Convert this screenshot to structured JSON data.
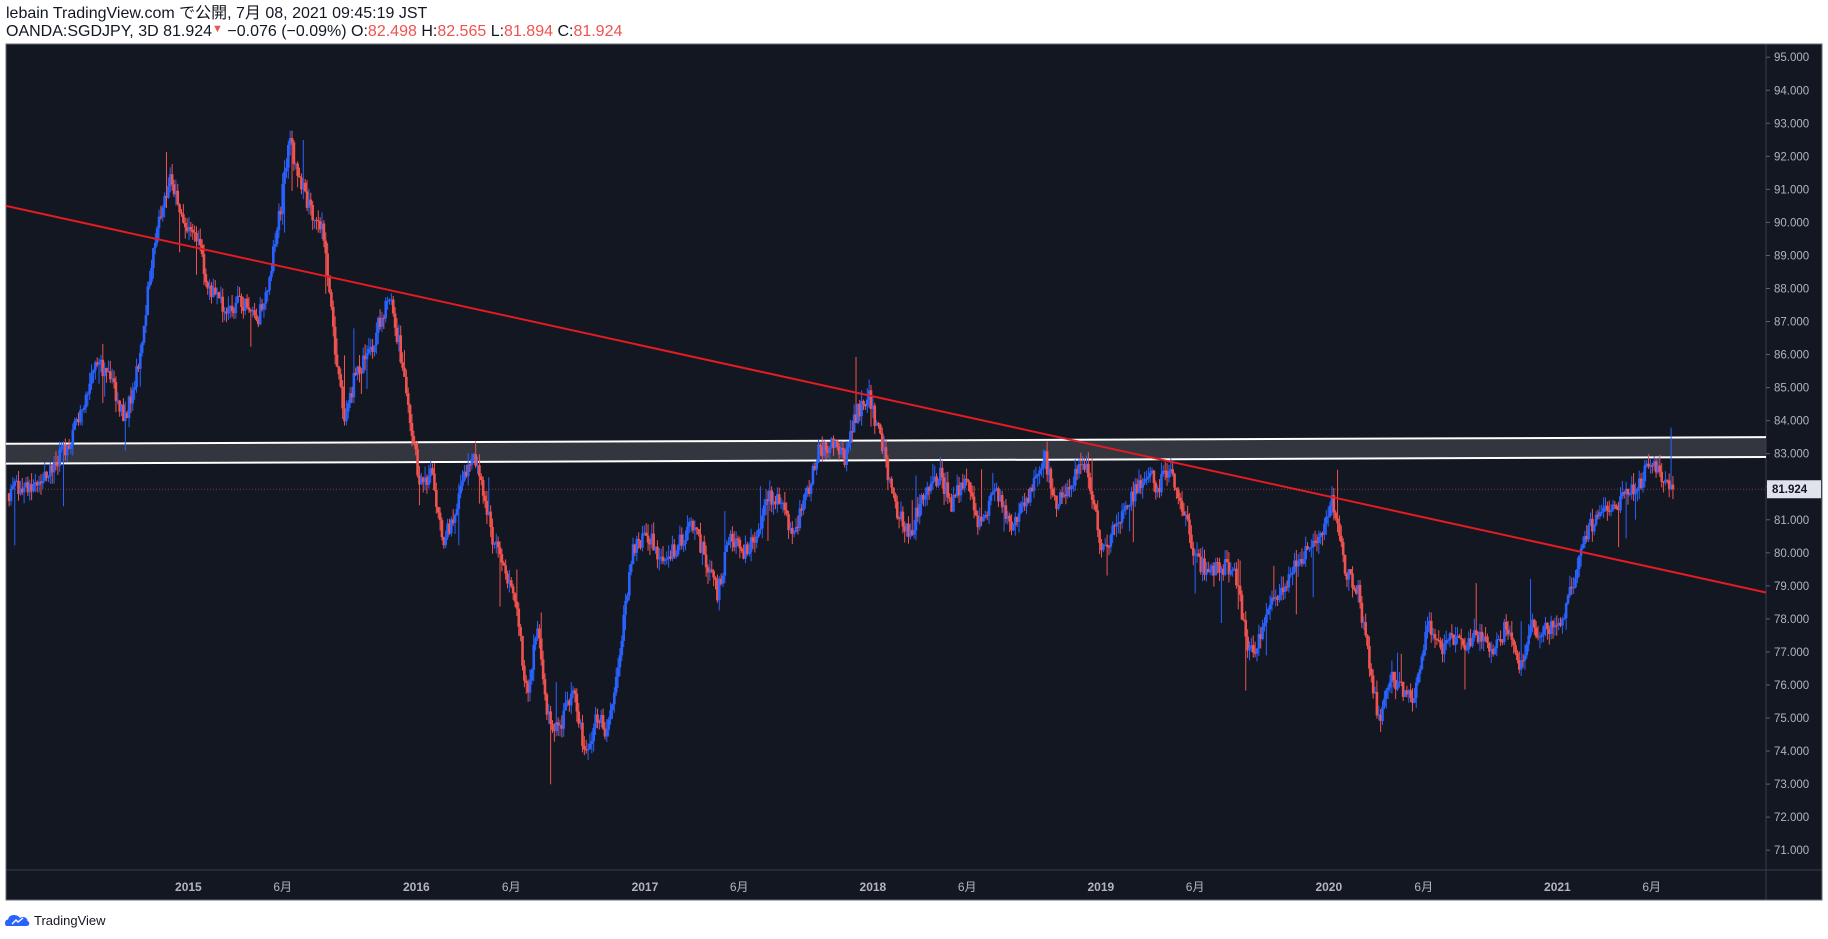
{
  "header": {
    "publish_line": "lebain TradingView.com で公開, 7月 08, 2021 09:45:19 JST",
    "symbol": "OANDA:SGDJPY, 3D",
    "last": "81.924",
    "change": "−0.076 (−0.09%)",
    "o_label": "O:",
    "o_value": "82.498",
    "h_label": "H:",
    "h_value": "82.565",
    "l_label": "L:",
    "l_value": "81.894",
    "c_label": "C:",
    "c_value": "81.924"
  },
  "footer": {
    "brand": "TradingView",
    "logo_icon": "tradingview-logo-icon"
  },
  "colors": {
    "background": "#131722",
    "up": "#2962ff",
    "down": "#ef5350",
    "trendline": "#e31b23",
    "zone_fill": "#3a3c44",
    "zone_border": "#ffffff",
    "axis_text": "#b2b5be"
  },
  "chart_data": {
    "type": "candlestick",
    "title": "",
    "xlabel": "",
    "ylabel": "",
    "ylim": [
      70.4,
      95.4
    ],
    "xlim": [
      "2014-03-15",
      "2021-12-01"
    ],
    "grid": false,
    "price_label": "81.924",
    "yticks": [
      71,
      72,
      73,
      74,
      75,
      76,
      77,
      78,
      79,
      80,
      81,
      82,
      83,
      84,
      85,
      86,
      87,
      88,
      89,
      90,
      91,
      92,
      93,
      94,
      95
    ],
    "xticks": [
      {
        "label": "2015",
        "date": "2015-01-01",
        "bold": true
      },
      {
        "label": "6月",
        "date": "2015-06-01",
        "bold": false
      },
      {
        "label": "2016",
        "date": "2016-01-01",
        "bold": true
      },
      {
        "label": "6月",
        "date": "2016-06-01",
        "bold": false
      },
      {
        "label": "2017",
        "date": "2017-01-01",
        "bold": true
      },
      {
        "label": "6月",
        "date": "2017-06-01",
        "bold": false
      },
      {
        "label": "2018",
        "date": "2018-01-01",
        "bold": true
      },
      {
        "label": "6月",
        "date": "2018-06-01",
        "bold": false
      },
      {
        "label": "2019",
        "date": "2019-01-01",
        "bold": true
      },
      {
        "label": "6月",
        "date": "2019-06-01",
        "bold": false
      },
      {
        "label": "2020",
        "date": "2020-01-01",
        "bold": true
      },
      {
        "label": "6月",
        "date": "2020-06-01",
        "bold": false
      },
      {
        "label": "2021",
        "date": "2021-01-01",
        "bold": true
      },
      {
        "label": "6月",
        "date": "2021-06-01",
        "bold": false
      }
    ],
    "trendline": {
      "from": {
        "date": "2014-03-15",
        "price": 90.5
      },
      "to": {
        "date": "2021-12-01",
        "price": 78.8
      }
    },
    "zone": {
      "left": {
        "date": "2014-03-15",
        "top": 83.3,
        "bottom": 82.7
      },
      "right": {
        "date": "2021-12-01",
        "top": 83.5,
        "bottom": 82.9
      }
    },
    "path_start": "2014-03-20",
    "path_step_days": 3,
    "path": [
      [
        "2014-03-20",
        81.8
      ],
      [
        "2014-05-15",
        82.2
      ],
      [
        "2014-07-01",
        83.5
      ],
      [
        "2014-08-10",
        85.8
      ],
      [
        "2014-09-01",
        85.3
      ],
      [
        "2014-09-25",
        84.0
      ],
      [
        "2014-10-20",
        86.0
      ],
      [
        "2014-11-10",
        89.5
      ],
      [
        "2014-12-08",
        91.5
      ],
      [
        "2014-12-22",
        90.0
      ],
      [
        "2015-01-15",
        89.8
      ],
      [
        "2015-02-05",
        88.0
      ],
      [
        "2015-03-01",
        87.4
      ],
      [
        "2015-04-01",
        87.6
      ],
      [
        "2015-04-25",
        87.0
      ],
      [
        "2015-05-15",
        88.5
      ],
      [
        "2015-06-01",
        90.5
      ],
      [
        "2015-06-15",
        92.5
      ],
      [
        "2015-06-28",
        91.6
      ],
      [
        "2015-07-20",
        90.2
      ],
      [
        "2015-08-10",
        89.6
      ],
      [
        "2015-08-25",
        86.5
      ],
      [
        "2015-09-10",
        84.0
      ],
      [
        "2015-09-30",
        85.5
      ],
      [
        "2015-10-20",
        86.0
      ],
      [
        "2015-11-10",
        87.2
      ],
      [
        "2015-11-25",
        87.6
      ],
      [
        "2015-12-15",
        85.5
      ],
      [
        "2016-01-10",
        82.0
      ],
      [
        "2016-01-30",
        82.5
      ],
      [
        "2016-02-15",
        80.2
      ],
      [
        "2016-03-10",
        81.5
      ],
      [
        "2016-04-01",
        83.0
      ],
      [
        "2016-04-20",
        82.0
      ],
      [
        "2016-05-05",
        80.5
      ],
      [
        "2016-05-25",
        79.5
      ],
      [
        "2016-06-15",
        78.0
      ],
      [
        "2016-06-30",
        75.5
      ],
      [
        "2016-07-15",
        78.0
      ],
      [
        "2016-07-30",
        75.2
      ],
      [
        "2016-08-20",
        74.5
      ],
      [
        "2016-09-10",
        76.0
      ],
      [
        "2016-09-30",
        73.9
      ],
      [
        "2016-10-20",
        75.0
      ],
      [
        "2016-11-05",
        74.6
      ],
      [
        "2016-11-25",
        77.0
      ],
      [
        "2016-12-15",
        80.0
      ],
      [
        "2017-01-10",
        80.6
      ],
      [
        "2017-02-01",
        79.6
      ],
      [
        "2017-02-28",
        80.3
      ],
      [
        "2017-03-20",
        80.8
      ],
      [
        "2017-04-10",
        79.9
      ],
      [
        "2017-04-30",
        78.8
      ],
      [
        "2017-05-20",
        80.5
      ],
      [
        "2017-06-10",
        79.9
      ],
      [
        "2017-06-30",
        80.4
      ],
      [
        "2017-07-20",
        81.8
      ],
      [
        "2017-08-10",
        81.5
      ],
      [
        "2017-08-30",
        80.6
      ],
      [
        "2017-09-20",
        81.7
      ],
      [
        "2017-10-10",
        83.1
      ],
      [
        "2017-11-01",
        83.4
      ],
      [
        "2017-11-20",
        82.9
      ],
      [
        "2017-12-10",
        84.3
      ],
      [
        "2017-12-30",
        84.7
      ],
      [
        "2018-01-20",
        83.1
      ],
      [
        "2018-02-10",
        81.3
      ],
      [
        "2018-03-05",
        80.6
      ],
      [
        "2018-03-25",
        81.7
      ],
      [
        "2018-04-20",
        82.4
      ],
      [
        "2018-05-10",
        81.5
      ],
      [
        "2018-05-30",
        82.3
      ],
      [
        "2018-06-25",
        80.8
      ],
      [
        "2018-07-20",
        82.0
      ],
      [
        "2018-08-15",
        80.7
      ],
      [
        "2018-09-10",
        81.7
      ],
      [
        "2018-10-05",
        83.0
      ],
      [
        "2018-10-25",
        81.5
      ],
      [
        "2018-11-15",
        82.1
      ],
      [
        "2018-12-10",
        82.7
      ],
      [
        "2019-01-05",
        80.2
      ],
      [
        "2019-01-25",
        80.6
      ],
      [
        "2019-02-20",
        81.5
      ],
      [
        "2019-03-15",
        82.5
      ],
      [
        "2019-04-05",
        82.0
      ],
      [
        "2019-04-25",
        82.7
      ],
      [
        "2019-05-15",
        81.3
      ],
      [
        "2019-06-05",
        79.9
      ],
      [
        "2019-06-25",
        79.3
      ],
      [
        "2019-07-20",
        79.6
      ],
      [
        "2019-08-10",
        79.2
      ],
      [
        "2019-08-28",
        76.8
      ],
      [
        "2019-09-20",
        77.6
      ],
      [
        "2019-10-10",
        78.7
      ],
      [
        "2019-10-30",
        79.2
      ],
      [
        "2019-11-25",
        79.9
      ],
      [
        "2019-12-20",
        80.5
      ],
      [
        "2020-01-10",
        81.6
      ],
      [
        "2020-01-30",
        79.5
      ],
      [
        "2020-02-20",
        78.9
      ],
      [
        "2020-03-10",
        76.5
      ],
      [
        "2020-03-25",
        74.8
      ],
      [
        "2020-04-10",
        76.3
      ],
      [
        "2020-04-30",
        75.8
      ],
      [
        "2020-05-20",
        75.5
      ],
      [
        "2020-06-10",
        77.8
      ],
      [
        "2020-06-30",
        77.1
      ],
      [
        "2020-07-20",
        77.4
      ],
      [
        "2020-08-10",
        77.2
      ],
      [
        "2020-09-01",
        77.6
      ],
      [
        "2020-09-25",
        77.0
      ],
      [
        "2020-10-15",
        77.8
      ],
      [
        "2020-11-05",
        76.6
      ],
      [
        "2020-11-25",
        77.8
      ],
      [
        "2020-12-15",
        77.6
      ],
      [
        "2021-01-10",
        78.0
      ],
      [
        "2021-01-30",
        79.0
      ],
      [
        "2021-02-20",
        80.6
      ],
      [
        "2021-03-15",
        81.4
      ],
      [
        "2021-04-05",
        81.3
      ],
      [
        "2021-04-25",
        81.7
      ],
      [
        "2021-05-15",
        82.0
      ],
      [
        "2021-05-28",
        82.8
      ],
      [
        "2021-06-15",
        82.5
      ],
      [
        "2021-07-07",
        81.924
      ]
    ]
  }
}
